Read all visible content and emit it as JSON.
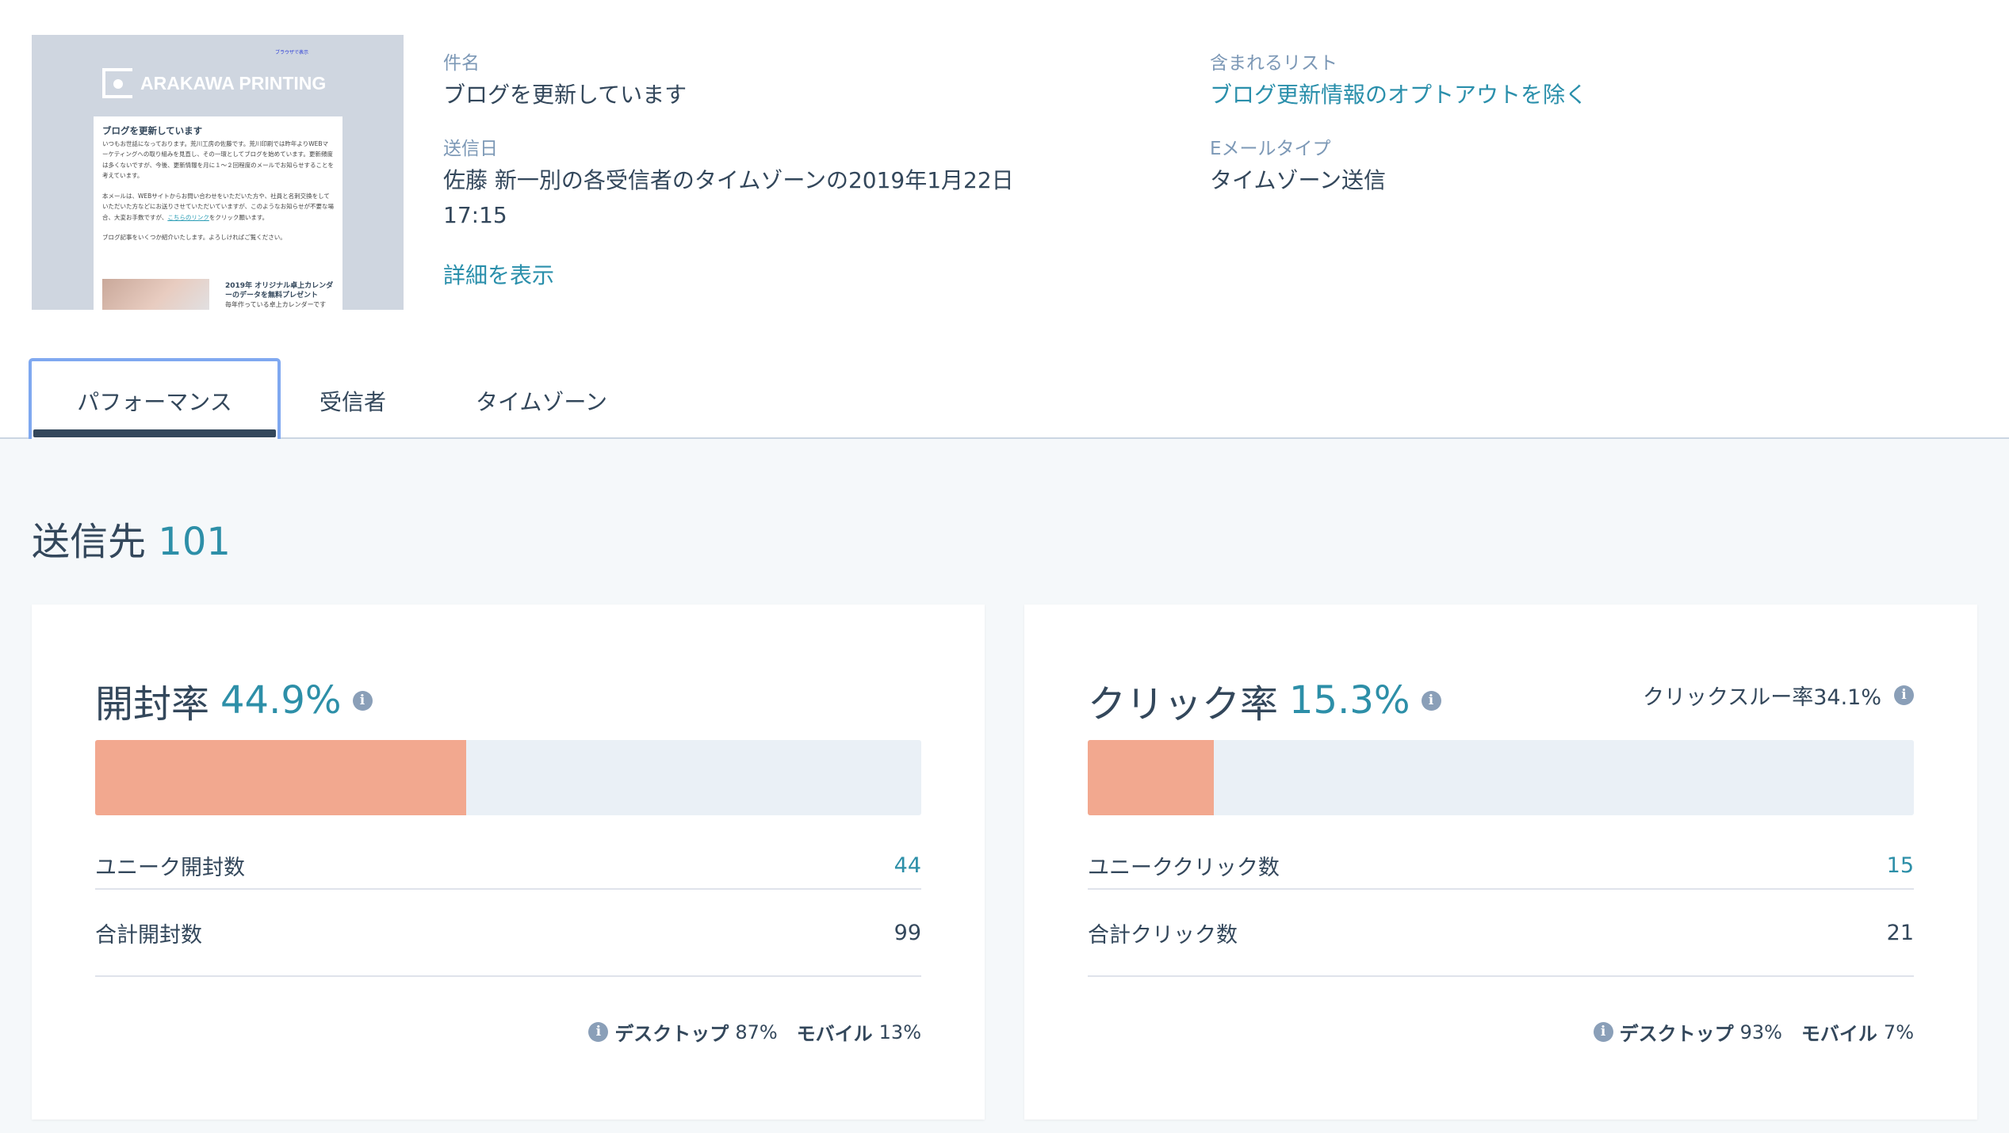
{
  "thumbnail": {
    "view_in_browser": "ブラウザで表示",
    "brand": "ARAKAWA PRINTING",
    "headline": "ブログを更新しています",
    "paragraphs": [
      "いつもお世話になっております。荒川工房の佐藤です。荒川印刷では昨年よりWEBマーケティングへの取り組みを見直し、その一環としてブログを始めています。更新頻度は多くないですが、今後、更新情報を月に１～２回程度のメールでお知らせすることを考えています。",
      "本メールは、WEBサイトからお問い合わせをいただいた方や、社員と名刺交換をしていただいた方などにお送りさせていただいていますが、このようなお知らせが不要な場合、大変お手数ですが、",
      "ブログ記事をいくつか紹介いたします。よろしければご覧ください。"
    ],
    "link_text": "こちらのリンク",
    "link_suffix": "をクリック願います。",
    "article_title": "2019年 オリジナル卓上カレンダーのデータを無料プレゼント",
    "article_body": "毎年作っている卓上カレンダーですが、今年はダウンロード版のデータも"
  },
  "meta": {
    "subject_label": "件名",
    "subject": "ブログを更新しています",
    "sent_label": "送信日",
    "sent_line1": "佐藤 新一別の各受信者のタイムゾーンの2019年1月22日",
    "sent_line2": "17:15",
    "details_link": "詳細を表示",
    "lists_label": "含まれるリスト",
    "lists_value": "ブログ更新情報のオプトアウトを除く",
    "type_label": "Eメールタイプ",
    "type_value": "タイムゾーン送信"
  },
  "tabs": [
    {
      "label": "パフォーマンス",
      "active": true
    },
    {
      "label": "受信者"
    },
    {
      "label": "タイムゾーン"
    }
  ],
  "recipients": {
    "label": "送信先",
    "count": "101"
  },
  "open": {
    "title": "開封率",
    "rate": "44.9%",
    "rate_value": 44.9,
    "unique_label": "ユニーク開封数",
    "unique": "44",
    "total_label": "合計開封数",
    "total": "99",
    "desktop_label": "デスクトップ",
    "desktop": "87%",
    "mobile_label": "モバイル",
    "mobile": "13%"
  },
  "click": {
    "title": "クリック率",
    "rate": "15.3%",
    "rate_value": 15.3,
    "ctr": "クリックスルー率34.1%",
    "unique_label": "ユニーククリック数",
    "unique": "15",
    "total_label": "合計クリック数",
    "total": "21",
    "desktop_label": "デスクトップ",
    "desktop": "93%",
    "mobile_label": "モバイル",
    "mobile": "7%"
  },
  "colors": {
    "accent": "#2d8fa8",
    "bar_fill": "#f2a88f",
    "bar_bg": "#eaf0f6",
    "text": "#33475b"
  }
}
